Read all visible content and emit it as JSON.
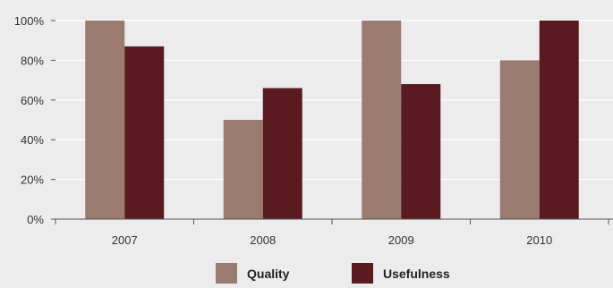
{
  "chart_data": {
    "type": "bar",
    "categories": [
      "2007",
      "2008",
      "2009",
      "2010"
    ],
    "series": [
      {
        "name": "Quality",
        "values": [
          100,
          50,
          100,
          80
        ],
        "color": "#9b7a6f"
      },
      {
        "name": "Usefulness",
        "values": [
          87,
          66,
          68,
          100
        ],
        "color": "#5a1b20"
      }
    ],
    "ylim": [
      0,
      100
    ],
    "yticks": [
      0,
      20,
      40,
      60,
      80,
      100
    ],
    "ytick_labels": [
      "0%",
      "20%",
      "40%",
      "60%",
      "80%",
      "100%"
    ],
    "grid": true,
    "legend_position": "bottom",
    "colors": {
      "background": "#ececec",
      "grid": "#ffffff",
      "axis": "#555555"
    }
  }
}
